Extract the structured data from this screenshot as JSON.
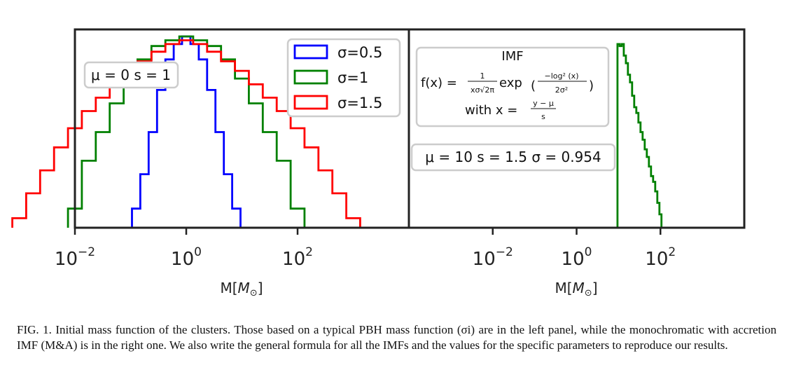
{
  "chart_data": [
    {
      "type": "histogram",
      "panel": "left",
      "xscale": "log",
      "xlabel": "M[M_⊙]",
      "xticks": [
        "10^-2",
        "10^0",
        "10^2"
      ],
      "xlim_log10": [
        -2.0,
        4.0
      ],
      "ylim_relative": [
        0,
        1
      ],
      "annotation": "μ = 0   s = 1",
      "legend_position": "top-right",
      "series": [
        {
          "name": "σ=0.5",
          "color": "#0000ff",
          "log10_m": [
            -0.9,
            -0.75,
            -0.6,
            -0.45,
            -0.3,
            -0.15,
            0.0,
            0.15,
            0.3,
            0.45,
            0.6,
            0.75,
            0.9
          ],
          "density": [
            0.1,
            0.28,
            0.5,
            0.72,
            0.88,
            0.96,
            1.0,
            0.96,
            0.88,
            0.72,
            0.5,
            0.28,
            0.1
          ]
        },
        {
          "name": "σ=1",
          "color": "#008000",
          "log10_m": [
            -2.0,
            -1.75,
            -1.5,
            -1.25,
            -1.0,
            -0.75,
            -0.5,
            -0.25,
            0.0,
            0.25,
            0.5,
            0.75,
            1.0,
            1.25,
            1.5,
            1.75,
            2.0
          ],
          "density": [
            0.1,
            0.35,
            0.5,
            0.65,
            0.78,
            0.88,
            0.95,
            0.98,
            1.0,
            0.98,
            0.95,
            0.88,
            0.78,
            0.65,
            0.5,
            0.35,
            0.1
          ]
        },
        {
          "name": "σ=1.5",
          "color": "#ff0000",
          "log10_m": [
            -3.0,
            -2.75,
            -2.5,
            -2.25,
            -2.0,
            -1.75,
            -1.5,
            -1.25,
            -1.0,
            -0.75,
            -0.5,
            -0.25,
            0.0,
            0.25,
            0.5,
            0.75,
            1.0,
            1.25,
            1.5,
            1.75,
            2.0,
            2.25,
            2.5,
            2.75,
            3.0
          ],
          "density": [
            0.05,
            0.18,
            0.3,
            0.42,
            0.52,
            0.61,
            0.68,
            0.75,
            0.82,
            0.87,
            0.92,
            0.96,
            0.98,
            0.96,
            0.92,
            0.87,
            0.82,
            0.75,
            0.68,
            0.61,
            0.52,
            0.42,
            0.3,
            0.18,
            0.05
          ]
        }
      ]
    },
    {
      "type": "histogram",
      "panel": "right",
      "xscale": "log",
      "xlabel": "M[M_⊙]",
      "xticks": [
        "10^-2",
        "10^0",
        "10^2"
      ],
      "xlim_log10": [
        -4.0,
        4.0
      ],
      "ylim_relative": [
        0,
        1
      ],
      "annotation": "μ = 10   s = 1.5   σ = 0.954",
      "series": [
        {
          "name": "",
          "color": "#008000",
          "log10_m": [
            1.0,
            1.05,
            1.1,
            1.15,
            1.2,
            1.25,
            1.3,
            1.35,
            1.4,
            1.45,
            1.5,
            1.55,
            1.6,
            1.65,
            1.7,
            1.75,
            1.8,
            1.85,
            1.9,
            1.95,
            2.0,
            2.05
          ],
          "density": [
            0.96,
            0.95,
            0.96,
            0.9,
            0.86,
            0.8,
            0.76,
            0.69,
            0.63,
            0.6,
            0.55,
            0.5,
            0.46,
            0.41,
            0.37,
            0.32,
            0.27,
            0.24,
            0.19,
            0.13,
            0.07,
            0.0
          ]
        }
      ]
    }
  ],
  "formula_box": {
    "title": "IMF",
    "lhs": "f(x) = ",
    "frac_num": "1",
    "frac_den": "xσ√2π",
    "exp_word": "exp",
    "exp_num": "−log² (x)",
    "exp_den": "2σ²",
    "with_prefix": "with x = ",
    "with_num": "y − μ",
    "with_den": "s"
  },
  "colors": {
    "blue": "#0000ff",
    "green": "#008000",
    "red": "#ff0000",
    "frame": "#222222",
    "boxborder": "#cccccc"
  },
  "caption": "FIG. 1. Initial mass function of the clusters. Those based on a typical PBH mass function (σi) are in the left panel, while the monochromatic with accretion IMF (M&A) is in the right one. We also write the general formula for all the IMFs and the values for the specific parameters to reproduce our results."
}
